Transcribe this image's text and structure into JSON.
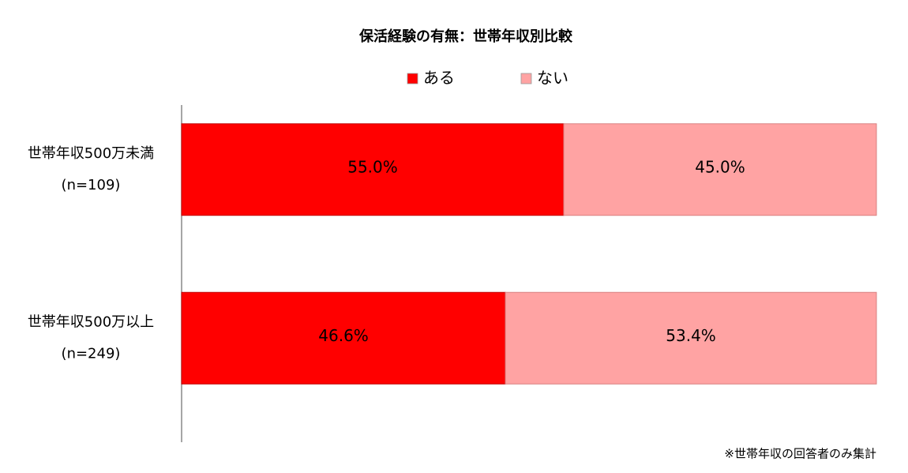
{
  "chart_data": {
    "type": "bar",
    "orientation": "horizontal",
    "stacked": true,
    "title": "保活経験の有無：世帯年収別比較",
    "categories": [
      [
        "世帯年収500万未満",
        "(n=109)"
      ],
      [
        "世帯年収500万以上",
        "(n=249)"
      ]
    ],
    "series": [
      {
        "name": "ある",
        "color": "#ff0000",
        "label_color": "#ffffff",
        "values": [
          55.0,
          46.6
        ],
        "value_labels": [
          "55.0%",
          "46.6%"
        ]
      },
      {
        "name": "ない",
        "color": "#ffa3a3",
        "label_color": "#000000",
        "values": [
          45.0,
          53.4
        ],
        "value_labels": [
          "45.0%",
          "53.4%"
        ]
      }
    ],
    "xlim": [
      0,
      100
    ],
    "legend": "top",
    "note": "※世帯年収の回答者のみ集計"
  }
}
